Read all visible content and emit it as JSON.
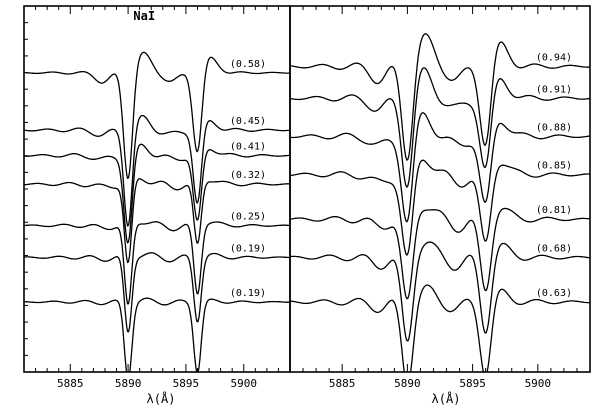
{
  "chart_data": [
    {
      "type": "line",
      "title": "NaI",
      "xlabel": "λ(Å)",
      "ylabel": "",
      "xlim": [
        5881,
        5904
      ],
      "xticks": [
        5885,
        5890,
        5895,
        5900
      ],
      "xtick_labels": [
        "5885",
        "5890",
        "5895",
        "5900"
      ],
      "grid": false,
      "lines": {
        "D2": 5890.0,
        "D1": 5896.0
      },
      "series": [
        {
          "label": "(0.58)",
          "level": 8.4,
          "skew": 0.6,
          "d2": 3.4,
          "d1": 2.6,
          "w": 0.55,
          "wiggle": 0.08
        },
        {
          "label": "(0.45)",
          "level": 6.6,
          "skew": 0.35,
          "d2": 3.0,
          "d1": 2.4,
          "w": 0.5,
          "wiggle": 0.12
        },
        {
          "label": "(0.41)",
          "level": 5.8,
          "skew": 0.3,
          "d2": 2.8,
          "d1": 2.2,
          "w": 0.5,
          "wiggle": 0.12
        },
        {
          "label": "(0.32)",
          "level": 4.9,
          "skew": 0.2,
          "d2": 2.6,
          "d1": 2.0,
          "w": 0.45,
          "wiggle": 0.12
        },
        {
          "label": "(0.25)",
          "level": 3.6,
          "skew": 0.15,
          "d2": 2.6,
          "d1": 2.2,
          "w": 0.45,
          "wiggle": 0.1
        },
        {
          "label": "(0.19)",
          "level": 2.6,
          "skew": 0.1,
          "d2": 2.4,
          "d1": 2.0,
          "w": 0.45,
          "wiggle": 0.1
        },
        {
          "label": "(0.19)",
          "level": 1.2,
          "skew": 0.05,
          "d2": 2.4,
          "d1": 2.2,
          "w": 0.45,
          "wiggle": 0.08
        }
      ]
    },
    {
      "type": "line",
      "title": "",
      "xlabel": "λ(Å)",
      "ylabel": "",
      "xlim": [
        5881,
        5904
      ],
      "xticks": [
        5885,
        5890,
        5895,
        5900
      ],
      "xtick_labels": [
        "5885",
        "5890",
        "5895",
        "5900"
      ],
      "grid": false,
      "lines": {
        "D2": 5890.0,
        "D1": 5896.0
      },
      "series": [
        {
          "label": "(0.94)",
          "level": 8.6,
          "skew": 0.9,
          "d2": 3.0,
          "d1": 2.6,
          "w": 0.6,
          "wiggle": 0.2
        },
        {
          "label": "(0.91)",
          "level": 7.6,
          "skew": 0.8,
          "d2": 2.8,
          "d1": 2.4,
          "w": 0.6,
          "wiggle": 0.2
        },
        {
          "label": "(0.88)",
          "level": 6.4,
          "skew": 0.7,
          "d2": 2.8,
          "d1": 2.4,
          "w": 0.6,
          "wiggle": 0.2
        },
        {
          "label": "(0.85)",
          "level": 5.2,
          "skew": 0.6,
          "d2": 2.8,
          "d1": 2.4,
          "w": 0.6,
          "wiggle": 0.2
        },
        {
          "label": "(0.81)",
          "level": 3.8,
          "skew": 0.5,
          "d2": 2.8,
          "d1": 2.4,
          "w": 0.6,
          "wiggle": 0.2
        },
        {
          "label": "(0.68)",
          "level": 2.6,
          "skew": 0.5,
          "d2": 2.8,
          "d1": 2.4,
          "w": 0.6,
          "wiggle": 0.2
        },
        {
          "label": "(0.63)",
          "level": 1.2,
          "skew": 0.4,
          "d2": 2.6,
          "d1": 2.3,
          "w": 0.6,
          "wiggle": 0.2
        }
      ]
    }
  ]
}
